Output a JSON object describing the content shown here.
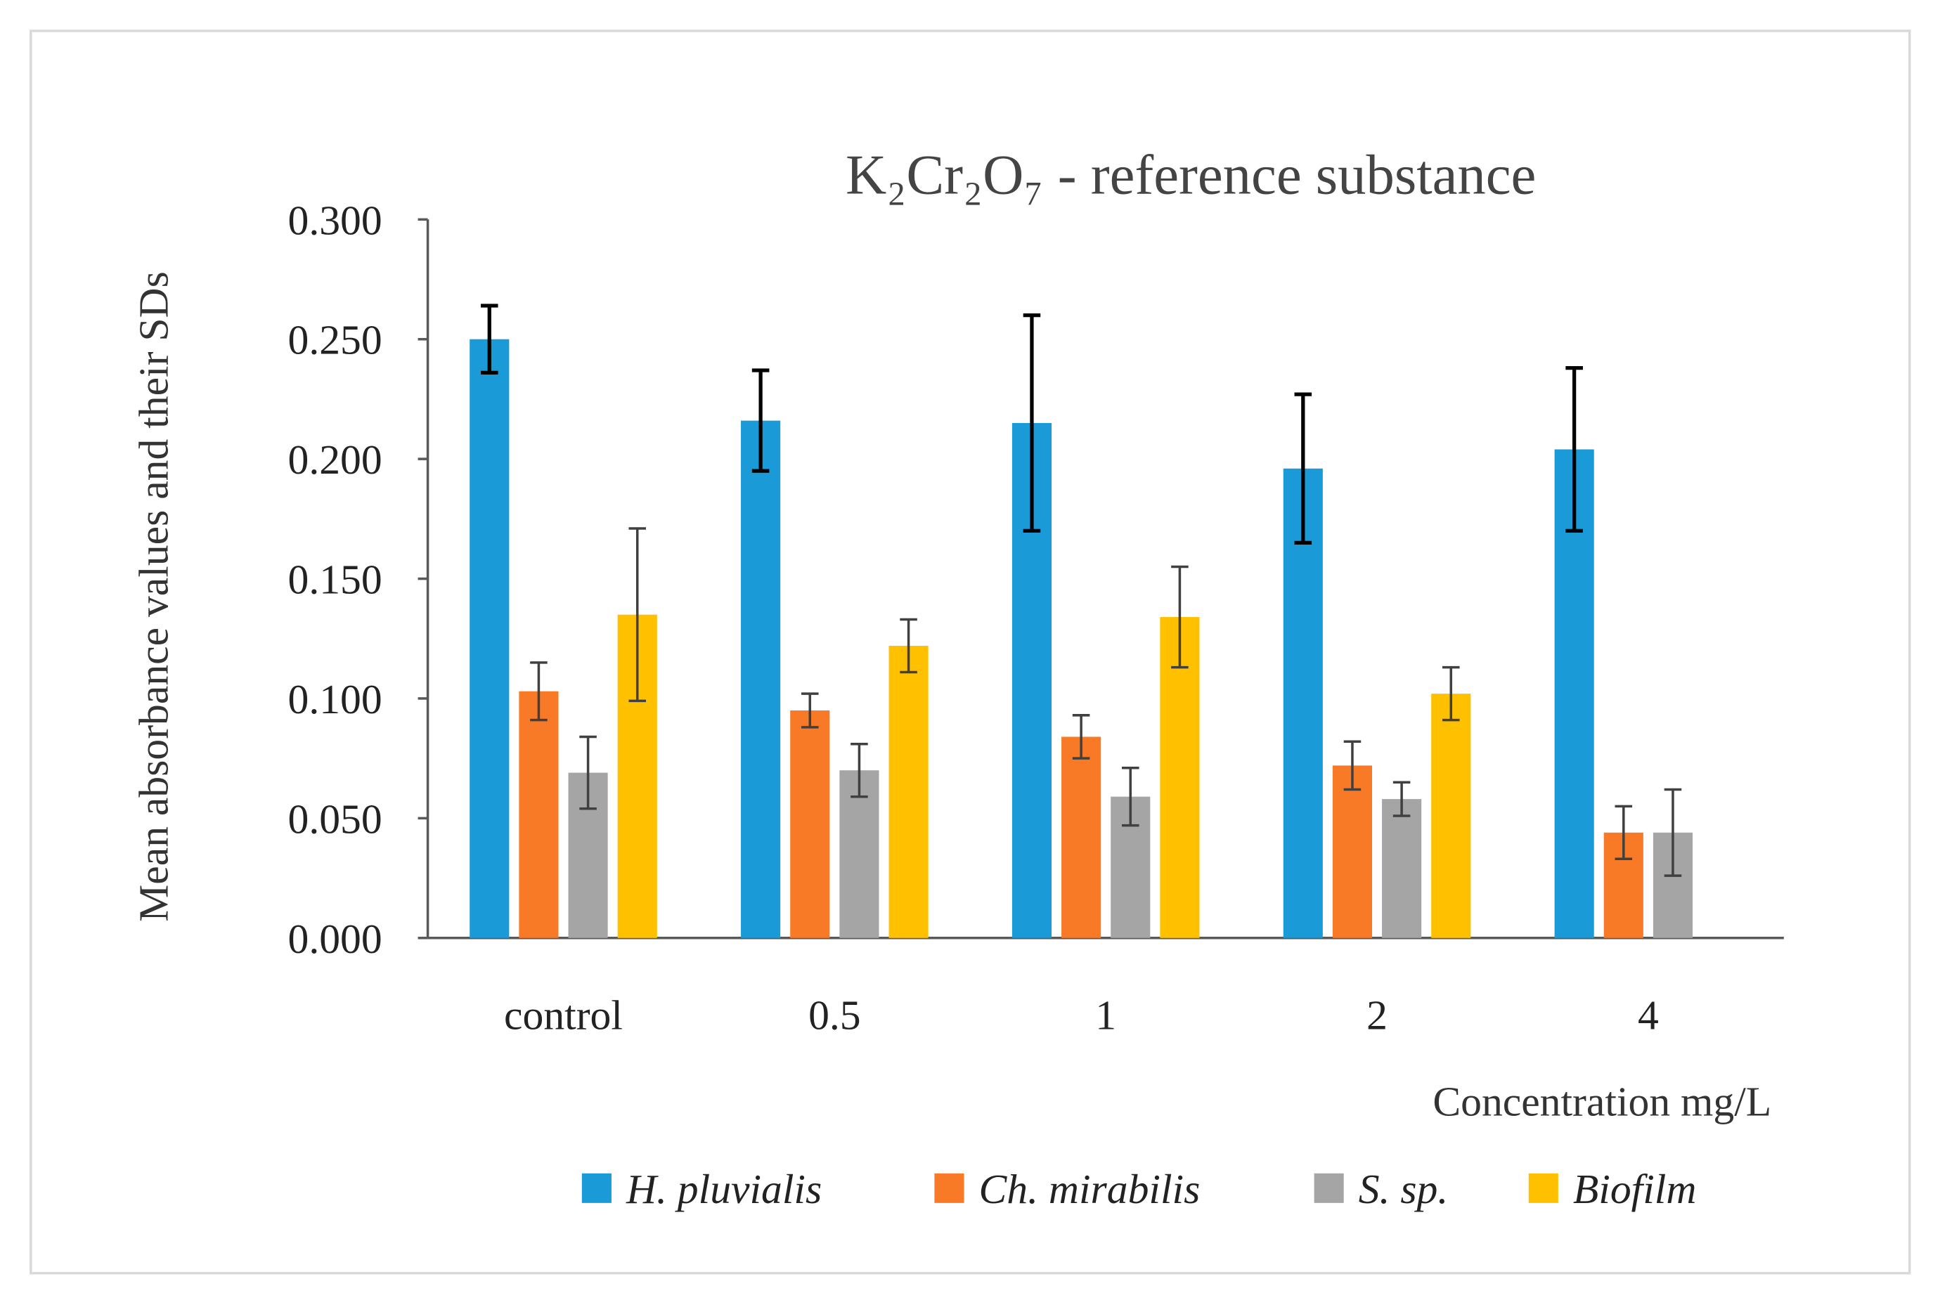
{
  "chart_data": {
    "type": "bar",
    "title": "K₂Cr₂O₇ - reference substance",
    "xlabel": "Concentration mg/L",
    "ylabel": "Mean absorbance values and their SDs",
    "ylim": [
      0,
      0.3
    ],
    "yticks": [
      "0.000",
      "0.050",
      "0.100",
      "0.150",
      "0.200",
      "0.250",
      "0.300"
    ],
    "categories": [
      "control",
      "0.5",
      "1",
      "2",
      "4"
    ],
    "legend_position": "bottom",
    "grid": false,
    "series": [
      {
        "name": "H. pluvialis",
        "color": "#1a9ad6",
        "values": [
          0.25,
          0.216,
          0.215,
          0.196,
          0.204
        ],
        "sd": [
          0.014,
          0.021,
          0.045,
          0.031,
          0.034
        ]
      },
      {
        "name": "Ch. mirabilis",
        "color": "#f97a26",
        "values": [
          0.103,
          0.095,
          0.084,
          0.072,
          0.044
        ],
        "sd": [
          0.012,
          0.007,
          0.009,
          0.01,
          0.011
        ]
      },
      {
        "name": "S. sp.",
        "color": "#a5a5a5",
        "values": [
          0.069,
          0.07,
          0.059,
          0.058,
          0.044
        ],
        "sd": [
          0.015,
          0.011,
          0.012,
          0.007,
          0.018
        ]
      },
      {
        "name": "Biofilm",
        "color": "#ffc000",
        "values": [
          0.135,
          0.122,
          0.134,
          0.102,
          null
        ],
        "sd": [
          0.036,
          0.011,
          0.021,
          0.011,
          null
        ]
      }
    ]
  }
}
